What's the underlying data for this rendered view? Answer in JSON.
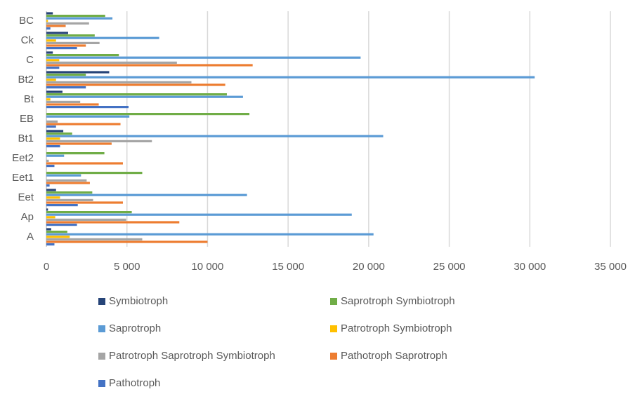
{
  "chart_data": {
    "type": "hbar",
    "categories": [
      "BC",
      "Ck",
      "C",
      "Bt2",
      "Bt",
      "EB",
      "Bt1",
      "Eet2",
      "Eet1",
      "Eet",
      "Ap",
      "A"
    ],
    "series": [
      {
        "name": "Symbiotroph",
        "color": "#264478",
        "values": [
          400,
          1350,
          400,
          3900,
          1000,
          0,
          1050,
          0,
          0,
          600,
          100,
          300
        ]
      },
      {
        "name": "Saprotroph Symbiotroph",
        "color": "#70ad47",
        "values": [
          3650,
          3000,
          4500,
          2450,
          11200,
          12600,
          1600,
          3600,
          5950,
          2850,
          5300,
          1300
        ]
      },
      {
        "name": "Saprotroph",
        "color": "#5b9bd5",
        "values": [
          4100,
          7000,
          19500,
          30300,
          12200,
          5150,
          20900,
          1100,
          2150,
          12450,
          18950,
          20300
        ]
      },
      {
        "name": "Patrotroph Symbiotroph",
        "color": "#ffc000",
        "values": [
          100,
          600,
          800,
          600,
          250,
          0,
          850,
          0,
          0,
          850,
          550,
          1450
        ]
      },
      {
        "name": "Patrotroph Saprotroph Symbiotroph",
        "color": "#a5a5a5",
        "values": [
          2650,
          3300,
          8100,
          9000,
          2100,
          700,
          6550,
          150,
          2500,
          2900,
          4950,
          5950
        ]
      },
      {
        "name": "Pathotroph Saprotroph",
        "color": "#ed7d31",
        "values": [
          1200,
          2450,
          12800,
          11100,
          3250,
          4600,
          4050,
          4750,
          2700,
          4750,
          8250,
          10000
        ]
      },
      {
        "name": "Pathotroph",
        "color": "#4472c4",
        "values": [
          250,
          1900,
          800,
          2450,
          5100,
          600,
          850,
          500,
          200,
          1950,
          1900,
          500
        ]
      }
    ],
    "xlim": [
      0,
      35000
    ],
    "xticks": [
      0,
      {
        "value": 5000,
        "label": "5 000"
      },
      {
        "value": 10000,
        "label": "10 000"
      },
      {
        "value": 15000,
        "label": "15 000"
      },
      {
        "value": 20000,
        "label": "20 000"
      },
      {
        "value": 25000,
        "label": "25 000"
      },
      {
        "value": 30000,
        "label": "30 000"
      },
      {
        "value": 35000,
        "label": "35 000"
      }
    ],
    "grid": true
  }
}
